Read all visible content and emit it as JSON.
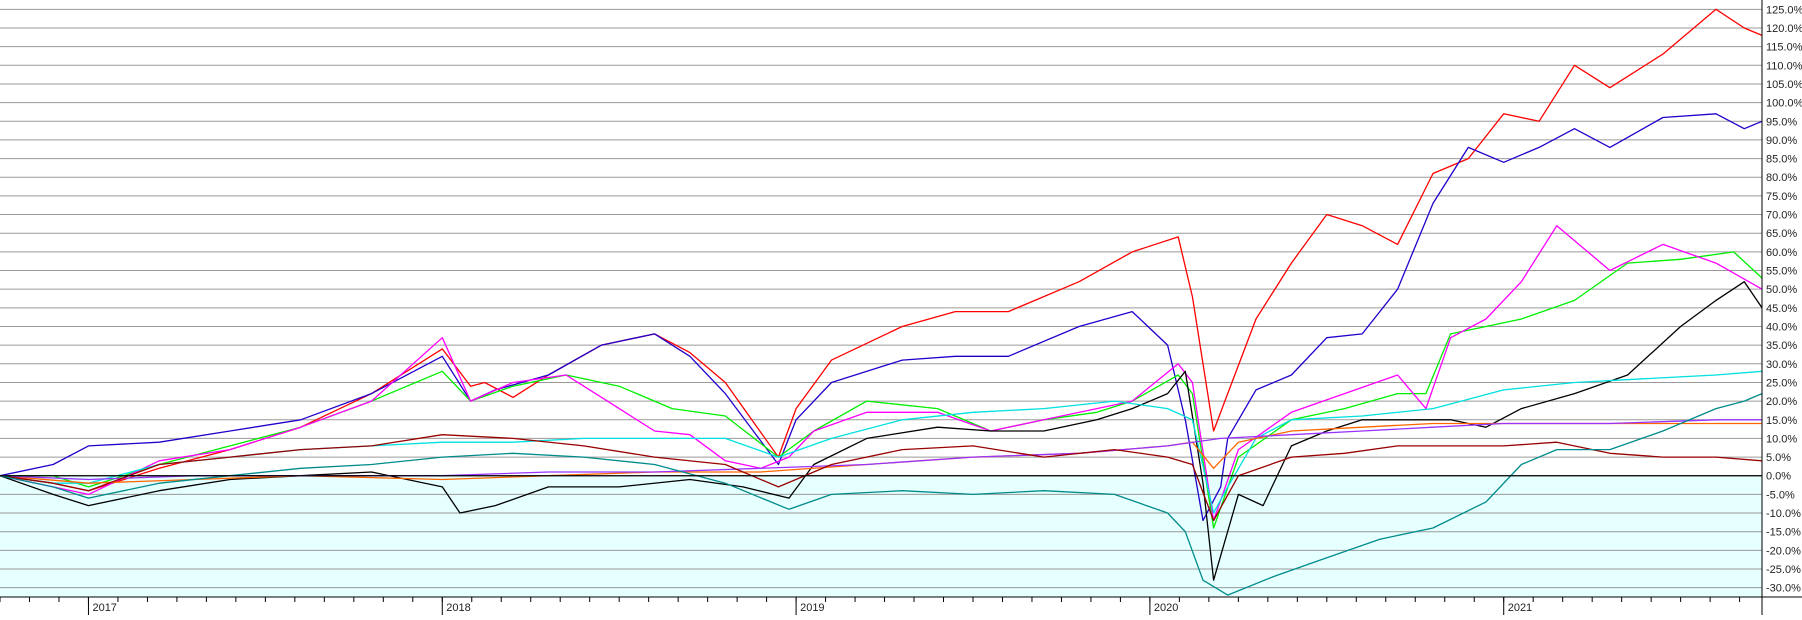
{
  "chart_data": {
    "type": "line",
    "title": "",
    "xlabel": "",
    "ylabel": "",
    "x_unit": "decimal year",
    "xlim": [
      2016.75,
      2021.73
    ],
    "ylim": [
      -32.5,
      127.5
    ],
    "y_ticks": [
      -30,
      -25,
      -20,
      -15,
      -10,
      -5,
      0,
      5,
      10,
      15,
      20,
      25,
      30,
      35,
      40,
      45,
      50,
      55,
      60,
      65,
      70,
      75,
      80,
      85,
      90,
      95,
      100,
      105,
      110,
      115,
      120,
      125
    ],
    "y_tick_labels": [
      "-30.0%",
      "-25.0%",
      "-20.0%",
      "-15.0%",
      "-10.0%",
      "-5.0%",
      "0.0%",
      "5.0%",
      "10.0%",
      "15.0%",
      "20.0%",
      "25.0%",
      "30.0%",
      "35.0%",
      "40.0%",
      "45.0%",
      "50.0%",
      "55.0%",
      "60.0%",
      "65.0%",
      "70.0%",
      "75.0%",
      "80.0%",
      "85.0%",
      "90.0%",
      "95.0%",
      "100.0%",
      "105.0%",
      "110.0%",
      "115.0%",
      "120.0%",
      "125.0%"
    ],
    "x_ticks": [
      2017,
      2018,
      2019,
      2020,
      2021
    ],
    "x_tick_labels": [
      "2017",
      "2018",
      "2019",
      "2020",
      "2021"
    ],
    "zero_line": 0,
    "grid": "horizontal",
    "background_above_zero": "#ffffff",
    "background_below_zero": "#e6ffff",
    "legend": "none",
    "series": [
      {
        "color": "#ff0000",
        "x": [
          2016.75,
          2016.9,
          2017.0,
          2017.2,
          2017.4,
          2017.6,
          2017.8,
          2018.0,
          2018.08,
          2018.12,
          2018.2,
          2018.3,
          2018.45,
          2018.6,
          2018.7,
          2018.8,
          2018.95,
          2019.0,
          2019.1,
          2019.3,
          2019.45,
          2019.6,
          2019.8,
          2019.95,
          2020.08,
          2020.12,
          2020.18,
          2020.22,
          2020.3,
          2020.4,
          2020.5,
          2020.6,
          2020.7,
          2020.8,
          2020.9,
          2021.0,
          2021.1,
          2021.2,
          2021.3,
          2021.45,
          2021.6,
          2021.68,
          2021.73
        ],
        "y": [
          0,
          -2,
          -4,
          2,
          7,
          13,
          22,
          34,
          24,
          25,
          21,
          27,
          35,
          38,
          33,
          25,
          5,
          18,
          31,
          40,
          44,
          44,
          52,
          60,
          64,
          48,
          12,
          22,
          42,
          57,
          70,
          67,
          62,
          81,
          85,
          97,
          95,
          110,
          104,
          113,
          125,
          120,
          118
        ]
      },
      {
        "color": "#2200cc",
        "x": [
          2016.75,
          2016.9,
          2017.0,
          2017.2,
          2017.4,
          2017.6,
          2017.8,
          2018.0,
          2018.08,
          2018.15,
          2018.3,
          2018.45,
          2018.6,
          2018.7,
          2018.8,
          2018.95,
          2019.0,
          2019.1,
          2019.3,
          2019.45,
          2019.6,
          2019.8,
          2019.95,
          2020.05,
          2020.1,
          2020.15,
          2020.2,
          2020.22,
          2020.3,
          2020.4,
          2020.5,
          2020.6,
          2020.7,
          2020.8,
          2020.9,
          2021.0,
          2021.1,
          2021.2,
          2021.3,
          2021.45,
          2021.6,
          2021.68,
          2021.73
        ],
        "y": [
          0,
          3,
          8,
          9,
          12,
          15,
          22,
          32,
          20,
          23,
          27,
          35,
          38,
          32,
          22,
          3,
          15,
          25,
          31,
          32,
          32,
          40,
          44,
          35,
          15,
          -12,
          -3,
          10,
          23,
          27,
          37,
          38,
          50,
          73,
          88,
          84,
          88,
          93,
          88,
          96,
          97,
          93,
          95
        ]
      },
      {
        "color": "#00ee00",
        "x": [
          2016.75,
          2016.9,
          2017.0,
          2017.2,
          2017.4,
          2017.6,
          2017.8,
          2018.0,
          2018.08,
          2018.2,
          2018.35,
          2018.5,
          2018.65,
          2018.8,
          2018.95,
          2019.05,
          2019.2,
          2019.4,
          2019.55,
          2019.7,
          2019.85,
          2019.95,
          2020.08,
          2020.12,
          2020.18,
          2020.25,
          2020.4,
          2020.55,
          2020.7,
          2020.78,
          2020.85,
          2020.95,
          2021.05,
          2021.2,
          2021.35,
          2021.5,
          2021.65,
          2021.73
        ],
        "y": [
          0,
          0,
          -3,
          3,
          8,
          13,
          20,
          28,
          20,
          24,
          27,
          24,
          18,
          16,
          5,
          12,
          20,
          18,
          12,
          15,
          17,
          20,
          27,
          22,
          -14,
          5,
          15,
          18,
          22,
          22,
          38,
          40,
          42,
          47,
          57,
          58,
          60,
          53
        ]
      },
      {
        "color": "#ff00ff",
        "x": [
          2016.75,
          2016.9,
          2017.0,
          2017.2,
          2017.4,
          2017.6,
          2017.8,
          2018.0,
          2018.08,
          2018.2,
          2018.35,
          2018.5,
          2018.6,
          2018.7,
          2018.8,
          2018.9,
          2018.98,
          2019.05,
          2019.2,
          2019.4,
          2019.55,
          2019.7,
          2019.85,
          2019.95,
          2020.08,
          2020.12,
          2020.18,
          2020.25,
          2020.4,
          2020.55,
          2020.7,
          2020.78,
          2020.85,
          2020.95,
          2021.05,
          2021.15,
          2021.3,
          2021.45,
          2021.6,
          2021.73
        ],
        "y": [
          0,
          -3,
          -5,
          4,
          7,
          13,
          20,
          37,
          20,
          25,
          27,
          18,
          12,
          11,
          4,
          2,
          5,
          12,
          17,
          17,
          12,
          15,
          18,
          20,
          30,
          25,
          -12,
          7,
          17,
          22,
          27,
          18,
          37,
          42,
          52,
          67,
          55,
          62,
          57,
          50
        ]
      },
      {
        "color": "#000000",
        "x": [
          2016.75,
          2016.9,
          2017.0,
          2017.2,
          2017.4,
          2017.6,
          2017.8,
          2018.0,
          2018.05,
          2018.15,
          2018.3,
          2018.5,
          2018.7,
          2018.85,
          2018.98,
          2019.05,
          2019.2,
          2019.4,
          2019.55,
          2019.7,
          2019.85,
          2019.95,
          2020.05,
          2020.1,
          2020.15,
          2020.18,
          2020.25,
          2020.32,
          2020.4,
          2020.5,
          2020.6,
          2020.7,
          2020.85,
          2020.95,
          2021.05,
          2021.2,
          2021.35,
          2021.5,
          2021.6,
          2021.68,
          2021.73
        ],
        "y": [
          0,
          -5,
          -8,
          -4,
          -1,
          0,
          1,
          -3,
          -10,
          -8,
          -3,
          -3,
          -1,
          -3,
          -6,
          3,
          10,
          13,
          12,
          12,
          15,
          18,
          22,
          28,
          -2,
          -28,
          -5,
          -8,
          8,
          12,
          15,
          15,
          15,
          13,
          18,
          22,
          27,
          40,
          47,
          52,
          45
        ]
      },
      {
        "color": "#00e0e0",
        "x": [
          2016.75,
          2016.9,
          2017.0,
          2017.2,
          2017.4,
          2017.6,
          2017.8,
          2018.0,
          2018.2,
          2018.4,
          2018.6,
          2018.8,
          2018.95,
          2019.1,
          2019.3,
          2019.5,
          2019.7,
          2019.9,
          2020.05,
          2020.12,
          2020.18,
          2020.22,
          2020.3,
          2020.4,
          2020.6,
          2020.8,
          2021.0,
          2021.2,
          2021.4,
          2021.6,
          2021.73
        ],
        "y": [
          0,
          -2,
          -2,
          3,
          5,
          7,
          8,
          9,
          9,
          10,
          10,
          10,
          5,
          10,
          15,
          17,
          18,
          20,
          18,
          15,
          -10,
          -3,
          10,
          15,
          16,
          18,
          23,
          25,
          26,
          27,
          28
        ]
      },
      {
        "color": "#ff6600",
        "x": [
          2016.75,
          2017.0,
          2017.3,
          2017.6,
          2018.0,
          2018.3,
          2018.6,
          2018.9,
          2019.2,
          2019.5,
          2019.8,
          2020.05,
          2020.12,
          2020.18,
          2020.25,
          2020.4,
          2020.6,
          2020.8,
          2021.0,
          2021.3,
          2021.6,
          2021.73
        ],
        "y": [
          0,
          -2,
          -1,
          0,
          -1,
          0,
          1,
          1,
          3,
          5,
          6,
          8,
          9,
          2,
          9,
          12,
          13,
          14,
          14,
          14,
          14,
          14
        ]
      },
      {
        "color": "#9933ff",
        "x": [
          2016.75,
          2017.0,
          2017.3,
          2017.6,
          2018.0,
          2018.3,
          2018.6,
          2018.9,
          2019.2,
          2019.5,
          2019.8,
          2020.05,
          2020.2,
          2020.4,
          2020.6,
          2020.8,
          2021.0,
          2021.3,
          2021.6,
          2021.73
        ],
        "y": [
          0,
          -1,
          0,
          0,
          0,
          1,
          1,
          2,
          3,
          5,
          6,
          8,
          10,
          11,
          12,
          13,
          14,
          14,
          15,
          15
        ]
      },
      {
        "color": "#990000",
        "x": [
          2016.75,
          2016.9,
          2017.0,
          2017.2,
          2017.4,
          2017.6,
          2017.8,
          2018.0,
          2018.2,
          2018.4,
          2018.6,
          2018.8,
          2018.95,
          2019.1,
          2019.3,
          2019.5,
          2019.7,
          2019.9,
          2020.05,
          2020.12,
          2020.18,
          2020.25,
          2020.4,
          2020.55,
          2020.7,
          2020.85,
          2021.0,
          2021.15,
          2021.3,
          2021.45,
          2021.6,
          2021.73
        ],
        "y": [
          0,
          -2,
          -4,
          3,
          5,
          7,
          8,
          11,
          10,
          8,
          5,
          3,
          -3,
          3,
          7,
          8,
          5,
          7,
          5,
          3,
          -12,
          0,
          5,
          6,
          8,
          8,
          8,
          9,
          6,
          5,
          5,
          4
        ]
      },
      {
        "color": "#008b8b",
        "x": [
          2016.75,
          2016.9,
          2017.0,
          2017.2,
          2017.4,
          2017.6,
          2017.8,
          2018.0,
          2018.2,
          2018.4,
          2018.6,
          2018.8,
          2018.98,
          2019.1,
          2019.3,
          2019.5,
          2019.7,
          2019.9,
          2020.05,
          2020.1,
          2020.15,
          2020.22,
          2020.35,
          2020.5,
          2020.65,
          2020.8,
          2020.95,
          2021.05,
          2021.15,
          2021.3,
          2021.45,
          2021.6,
          2021.68,
          2021.73
        ],
        "y": [
          0,
          -3,
          -6,
          -2,
          0,
          2,
          3,
          5,
          6,
          5,
          3,
          -2,
          -9,
          -5,
          -4,
          -5,
          -4,
          -5,
          -10,
          -15,
          -28,
          -32,
          -27,
          -22,
          -17,
          -14,
          -7,
          3,
          7,
          7,
          12,
          18,
          20,
          22
        ]
      }
    ]
  }
}
